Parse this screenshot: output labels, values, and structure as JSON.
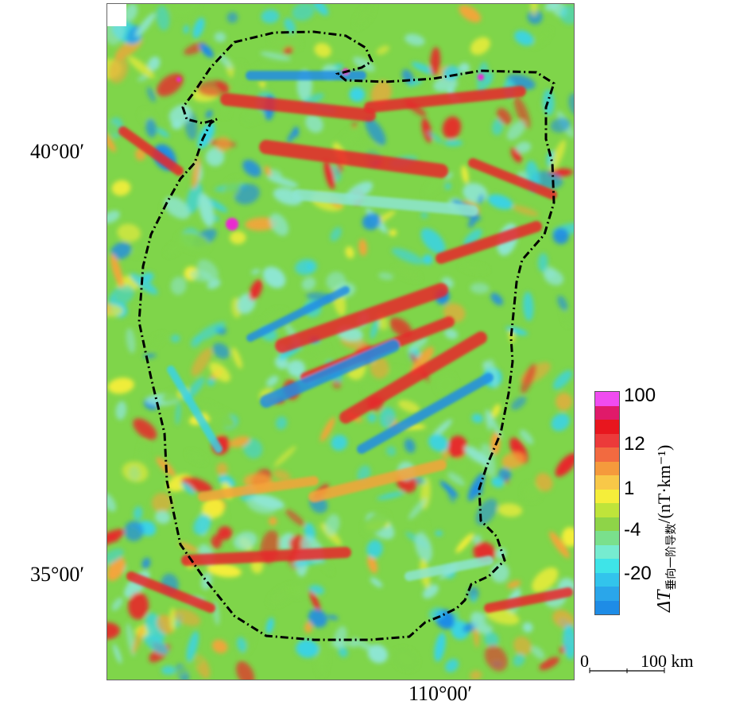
{
  "map": {
    "lat_labels": [
      "40°00′",
      "35°00′"
    ],
    "lon_labels": [
      "110°00′"
    ],
    "colors": {
      "blue": "#1e8ce6",
      "cyan": "#3ad3e6",
      "aqua": "#8ee6d2",
      "green": "#7fd54a",
      "yellow": "#f5ee3a",
      "orange": "#f5a43a",
      "red": "#e8262a",
      "magenta": "#ea2ad0",
      "boundary": "#000000"
    }
  },
  "colorbar": {
    "ticks": [
      "100",
      "12",
      "1",
      "-4",
      "-20"
    ],
    "colors": [
      "#f04cf0",
      "#e01a6a",
      "#e8161e",
      "#ec3a3a",
      "#f26a40",
      "#f59a3c",
      "#f8c848",
      "#f5ee3a",
      "#bfe43a",
      "#8ed448",
      "#7ae08c",
      "#76ecd0",
      "#3ee4e8",
      "#32c4ec",
      "#2aa6ea",
      "#1e8ce6"
    ],
    "title_symbol": "ΔT",
    "title_sub": "垂向一阶导数",
    "title_unit": "/(nT·km⁻¹)"
  },
  "scale": {
    "zero": "0",
    "label": "100 km"
  }
}
